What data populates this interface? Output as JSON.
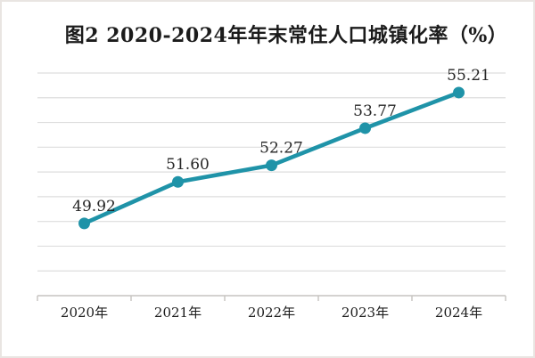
{
  "title": "图2  2020-2024年年末常住人口城镇化率（%）",
  "colors": {
    "line": "#1F93A8",
    "marker": "#1F93A8",
    "grid": "#DEDEDE",
    "axis": "#C6C3C0",
    "title_text": "#1B1B1B",
    "data_label_text": "#262626",
    "x_label_text": "#1C1C1C",
    "background": "#FFFFFF",
    "border": "#E9E5E2"
  },
  "chart_data": {
    "type": "line",
    "title": "图2  2020-2024年年末常住人口城镇化率（%）",
    "categories": [
      "2020年",
      "2021年",
      "2022年",
      "2023年",
      "2024年"
    ],
    "values": [
      49.92,
      51.6,
      52.27,
      53.77,
      55.21
    ],
    "data_labels": [
      "49.92",
      "51.60",
      "52.27",
      "53.77",
      "55.21"
    ],
    "xlabel": "",
    "ylabel": "",
    "ylim": [
      47,
      56
    ],
    "grid_interval": 1,
    "grid": true,
    "y_tick_labels_visible": false,
    "legend": false,
    "legend_position": "none"
  }
}
